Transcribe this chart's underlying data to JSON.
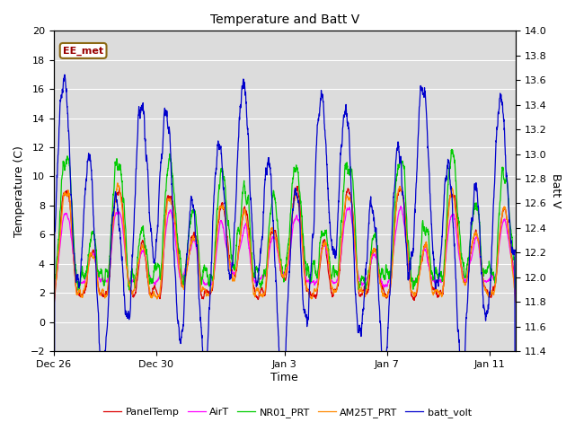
{
  "title": "Temperature and Batt V",
  "xlabel": "Time",
  "ylabel_left": "Temperature (C)",
  "ylabel_right": "Batt V",
  "ylim_left": [
    -2,
    20
  ],
  "ylim_right": [
    11.4,
    14.0
  ],
  "annotation": "EE_met",
  "background_color": "#ffffff",
  "plot_bg_color": "#dcdcdc",
  "legend_entries": [
    "PanelTemp",
    "AirT",
    "NR01_PRT",
    "AM25T_PRT",
    "batt_volt"
  ],
  "legend_colors": [
    "#dd0000",
    "#ff00ff",
    "#00cc00",
    "#ff8800",
    "#0000cc"
  ],
  "xtick_labels": [
    "Dec 26",
    "Dec 30",
    "Jan 3",
    "Jan 7",
    "Jan 11"
  ],
  "xtick_positions": [
    0,
    4,
    9,
    13,
    17
  ],
  "n_days": 18,
  "yticks_left": [
    -2,
    0,
    2,
    4,
    6,
    8,
    10,
    12,
    14,
    16,
    18,
    20
  ],
  "yticks_right": [
    11.4,
    11.6,
    11.8,
    12.0,
    12.2,
    12.4,
    12.6,
    12.8,
    13.0,
    13.2,
    13.4,
    13.6,
    13.8,
    14.0
  ],
  "seed": 7
}
